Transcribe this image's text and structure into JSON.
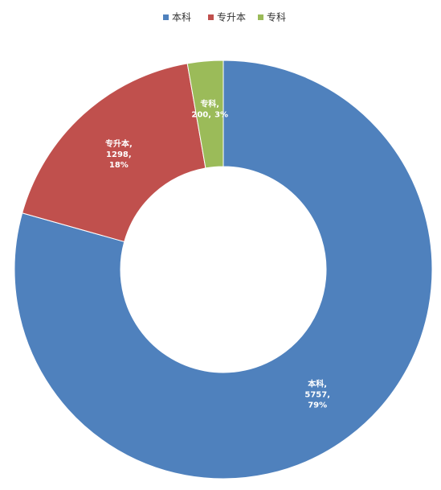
{
  "chart_data": {
    "type": "donut",
    "categories": [
      "本科",
      "专升本",
      "专科"
    ],
    "values": [
      5757,
      1298,
      200
    ],
    "colors": [
      "#4f81bd",
      "#c0504d",
      "#9bbb59"
    ],
    "label_names": [
      "本科,",
      "专升本,",
      "专科,"
    ],
    "value_labels": [
      "5757,",
      "1298,",
      "200,"
    ],
    "percents": [
      79,
      18,
      3
    ],
    "percent_labels": [
      "79%",
      "18%",
      "3%"
    ],
    "legend": "top"
  }
}
